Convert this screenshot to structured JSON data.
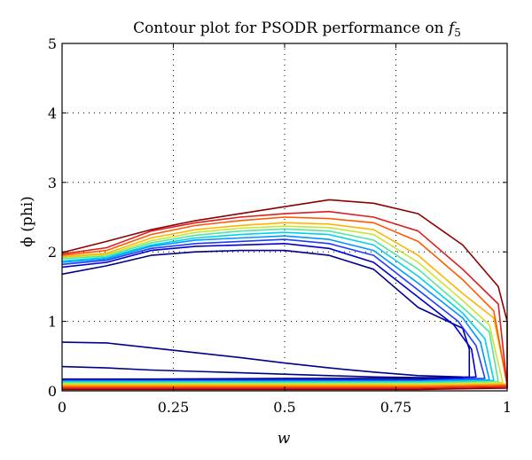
{
  "chart_data": {
    "type": "contour",
    "title_text": "Contour plot for PSODR performance on ",
    "title_func": "f",
    "title_sub": "5",
    "xlabel": "w",
    "ylabel": "ϕ (phi)",
    "xlim": [
      0,
      1
    ],
    "ylim": [
      0,
      5
    ],
    "xticks": [
      0,
      0.25,
      0.5,
      0.75,
      1
    ],
    "xtick_labels": [
      "0",
      "0.25",
      "0.5",
      "0.75",
      "1"
    ],
    "yticks": [
      0,
      1,
      2,
      3,
      4,
      5
    ],
    "ytick_labels": [
      "0",
      "1",
      "2",
      "3",
      "4",
      "5"
    ],
    "grid": true,
    "contours": [
      {
        "color": "#00008b",
        "points": [
          [
            0,
            1.68
          ],
          [
            0.1,
            1.8
          ],
          [
            0.2,
            1.95
          ],
          [
            0.3,
            2.0
          ],
          [
            0.4,
            2.02
          ],
          [
            0.5,
            2.02
          ],
          [
            0.6,
            1.95
          ],
          [
            0.7,
            1.75
          ],
          [
            0.8,
            1.2
          ],
          [
            0.9,
            0.9
          ],
          [
            0.915,
            0.6
          ],
          [
            0.915,
            0.2
          ],
          [
            0.8,
            0.18
          ],
          [
            0.5,
            0.18
          ],
          [
            0.2,
            0.17
          ],
          [
            0,
            0.17
          ]
        ]
      },
      {
        "color": "#00008b",
        "points": [
          [
            0,
            0.7
          ],
          [
            0.1,
            0.69
          ],
          [
            0.2,
            0.62
          ],
          [
            0.3,
            0.55
          ],
          [
            0.4,
            0.48
          ],
          [
            0.5,
            0.4
          ],
          [
            0.6,
            0.33
          ],
          [
            0.7,
            0.27
          ],
          [
            0.8,
            0.22
          ],
          [
            0.9,
            0.2
          ]
        ]
      },
      {
        "color": "#00008b",
        "points": [
          [
            0,
            0.35
          ],
          [
            0.1,
            0.33
          ],
          [
            0.2,
            0.3
          ],
          [
            0.3,
            0.28
          ],
          [
            0.4,
            0.26
          ],
          [
            0.5,
            0.24
          ],
          [
            0.6,
            0.22
          ],
          [
            0.7,
            0.2
          ],
          [
            0.8,
            0.19
          ],
          [
            0.9,
            0.19
          ]
        ]
      },
      {
        "color": "#0000cd",
        "points": [
          [
            0,
            1.78
          ],
          [
            0.1,
            1.85
          ],
          [
            0.2,
            2.02
          ],
          [
            0.3,
            2.08
          ],
          [
            0.4,
            2.1
          ],
          [
            0.5,
            2.12
          ],
          [
            0.6,
            2.05
          ],
          [
            0.7,
            1.85
          ],
          [
            0.8,
            1.35
          ],
          [
            0.88,
            0.95
          ],
          [
            0.92,
            0.6
          ],
          [
            0.93,
            0.2
          ],
          [
            0.8,
            0.16
          ],
          [
            0.5,
            0.16
          ],
          [
            0,
            0.16
          ]
        ]
      },
      {
        "color": "#1e3cff",
        "points": [
          [
            0,
            1.82
          ],
          [
            0.1,
            1.88
          ],
          [
            0.2,
            2.05
          ],
          [
            0.3,
            2.12
          ],
          [
            0.4,
            2.15
          ],
          [
            0.5,
            2.18
          ],
          [
            0.6,
            2.12
          ],
          [
            0.7,
            1.95
          ],
          [
            0.8,
            1.45
          ],
          [
            0.89,
            1.0
          ],
          [
            0.93,
            0.65
          ],
          [
            0.95,
            0.18
          ],
          [
            0.8,
            0.15
          ],
          [
            0.5,
            0.15
          ],
          [
            0,
            0.15
          ]
        ]
      },
      {
        "color": "#0096ff",
        "points": [
          [
            0,
            1.85
          ],
          [
            0.1,
            1.9
          ],
          [
            0.2,
            2.08
          ],
          [
            0.3,
            2.17
          ],
          [
            0.4,
            2.2
          ],
          [
            0.5,
            2.23
          ],
          [
            0.6,
            2.18
          ],
          [
            0.7,
            2.02
          ],
          [
            0.8,
            1.55
          ],
          [
            0.9,
            1.05
          ],
          [
            0.94,
            0.7
          ],
          [
            0.96,
            0.16
          ],
          [
            0.8,
            0.14
          ],
          [
            0.5,
            0.14
          ],
          [
            0,
            0.14
          ]
        ]
      },
      {
        "color": "#00d2e6",
        "points": [
          [
            0,
            1.87
          ],
          [
            0.1,
            1.92
          ],
          [
            0.2,
            2.1
          ],
          [
            0.3,
            2.2
          ],
          [
            0.4,
            2.25
          ],
          [
            0.5,
            2.28
          ],
          [
            0.6,
            2.25
          ],
          [
            0.7,
            2.1
          ],
          [
            0.8,
            1.65
          ],
          [
            0.9,
            1.12
          ],
          [
            0.95,
            0.75
          ],
          [
            0.97,
            0.15
          ],
          [
            0.8,
            0.13
          ],
          [
            0.5,
            0.13
          ],
          [
            0,
            0.13
          ]
        ]
      },
      {
        "color": "#50e6a0",
        "points": [
          [
            0,
            1.9
          ],
          [
            0.1,
            1.94
          ],
          [
            0.2,
            2.13
          ],
          [
            0.3,
            2.24
          ],
          [
            0.4,
            2.3
          ],
          [
            0.5,
            2.33
          ],
          [
            0.6,
            2.3
          ],
          [
            0.7,
            2.17
          ],
          [
            0.8,
            1.75
          ],
          [
            0.9,
            1.2
          ],
          [
            0.96,
            0.85
          ],
          [
            0.98,
            0.13
          ],
          [
            0.8,
            0.12
          ],
          [
            0.5,
            0.12
          ],
          [
            0,
            0.12
          ]
        ]
      },
      {
        "color": "#c8e632",
        "points": [
          [
            0,
            1.92
          ],
          [
            0.1,
            1.96
          ],
          [
            0.2,
            2.16
          ],
          [
            0.3,
            2.28
          ],
          [
            0.4,
            2.34
          ],
          [
            0.5,
            2.37
          ],
          [
            0.6,
            2.35
          ],
          [
            0.7,
            2.25
          ],
          [
            0.8,
            1.85
          ],
          [
            0.9,
            1.3
          ],
          [
            0.96,
            0.95
          ],
          [
            0.99,
            0.12
          ],
          [
            0.8,
            0.1
          ],
          [
            0.5,
            0.1
          ],
          [
            0,
            0.1
          ]
        ]
      },
      {
        "color": "#ffb400",
        "points": [
          [
            0,
            1.93
          ],
          [
            0.1,
            1.98
          ],
          [
            0.2,
            2.2
          ],
          [
            0.3,
            2.32
          ],
          [
            0.4,
            2.38
          ],
          [
            0.5,
            2.42
          ],
          [
            0.6,
            2.4
          ],
          [
            0.7,
            2.32
          ],
          [
            0.8,
            1.95
          ],
          [
            0.9,
            1.4
          ],
          [
            0.97,
            1.05
          ],
          [
            1.0,
            0.1
          ],
          [
            0.8,
            0.08
          ],
          [
            0.5,
            0.08
          ],
          [
            0,
            0.08
          ]
        ]
      },
      {
        "color": "#ff5a00",
        "points": [
          [
            0,
            1.95
          ],
          [
            0.1,
            2.02
          ],
          [
            0.2,
            2.25
          ],
          [
            0.3,
            2.38
          ],
          [
            0.4,
            2.45
          ],
          [
            0.5,
            2.5
          ],
          [
            0.6,
            2.48
          ],
          [
            0.7,
            2.42
          ],
          [
            0.8,
            2.15
          ],
          [
            0.9,
            1.6
          ],
          [
            0.97,
            1.15
          ],
          [
            1.0,
            0.08
          ],
          [
            0.8,
            0.06
          ],
          [
            0.5,
            0.06
          ],
          [
            0,
            0.06
          ]
        ]
      },
      {
        "color": "#dc1e1e",
        "points": [
          [
            0,
            1.97
          ],
          [
            0.1,
            2.06
          ],
          [
            0.2,
            2.3
          ],
          [
            0.3,
            2.42
          ],
          [
            0.4,
            2.5
          ],
          [
            0.5,
            2.55
          ],
          [
            0.6,
            2.58
          ],
          [
            0.7,
            2.5
          ],
          [
            0.8,
            2.3
          ],
          [
            0.9,
            1.75
          ],
          [
            0.98,
            1.25
          ],
          [
            1.0,
            0.06
          ],
          [
            0.8,
            0.04
          ],
          [
            0.5,
            0.04
          ],
          [
            0,
            0.04
          ]
        ]
      },
      {
        "color": "#8b0000",
        "points": [
          [
            0,
            1.99
          ],
          [
            0.1,
            2.15
          ],
          [
            0.2,
            2.32
          ],
          [
            0.3,
            2.45
          ],
          [
            0.4,
            2.55
          ],
          [
            0.5,
            2.65
          ],
          [
            0.6,
            2.75
          ],
          [
            0.7,
            2.7
          ],
          [
            0.8,
            2.55
          ],
          [
            0.9,
            2.1
          ],
          [
            0.98,
            1.5
          ],
          [
            1.0,
            1.0
          ],
          [
            1.0,
            0.04
          ],
          [
            0.8,
            0.02
          ],
          [
            0.5,
            0.02
          ],
          [
            0,
            0.02
          ]
        ]
      }
    ]
  }
}
